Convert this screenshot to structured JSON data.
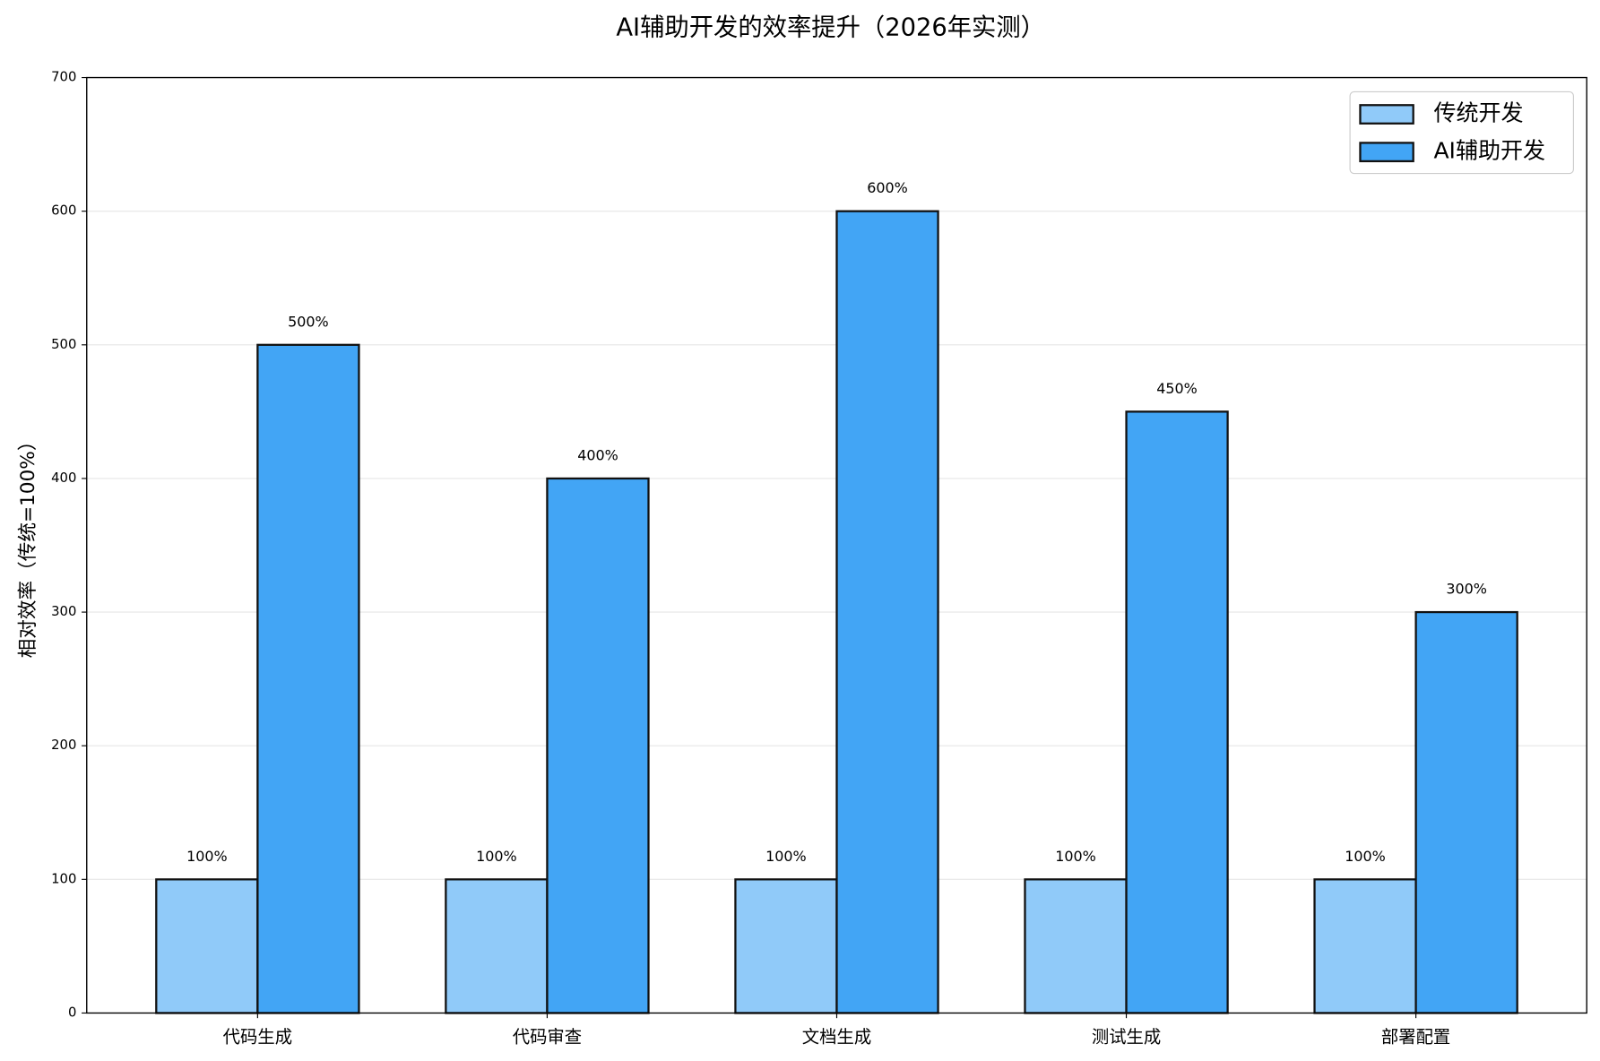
{
  "chart_data": {
    "type": "bar",
    "title": "AI辅助开发的效率提升（2026年实测）",
    "y_label": "相对效率（传统=100%）",
    "categories": [
      "代码生成",
      "代码审查",
      "文档生成",
      "测试生成",
      "部署配置"
    ],
    "series": [
      {
        "name": "传统开发",
        "color": "#90caf9",
        "values": [
          100,
          100,
          100,
          100,
          100
        ],
        "value_labels": [
          "100%",
          "100%",
          "100%",
          "100%",
          "100%"
        ]
      },
      {
        "name": "AI辅助开发",
        "color": "#42a5f5",
        "values": [
          500,
          400,
          600,
          450,
          300
        ],
        "value_labels": [
          "500%",
          "400%",
          "600%",
          "450%",
          "300%"
        ]
      }
    ],
    "ylim": [
      0,
      700
    ],
    "yticks": [
      0,
      100,
      200,
      300,
      400,
      500,
      600,
      700
    ],
    "grid": true,
    "legend": "upper right"
  }
}
